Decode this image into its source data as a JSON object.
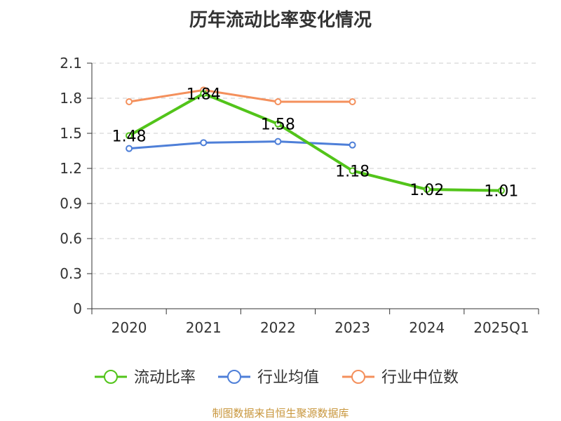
{
  "chart_data": {
    "type": "line",
    "title": "历年流动比率变化情况",
    "categories": [
      "2020",
      "2021",
      "2022",
      "2023",
      "2024",
      "2025Q1"
    ],
    "ylim": [
      0,
      2.1
    ],
    "yticks": [
      "0",
      "0.3",
      "0.6",
      "0.9",
      "1.2",
      "1.5",
      "1.8",
      "2.1"
    ],
    "grid": true,
    "legend_position": "bottom",
    "series": [
      {
        "name": "流动比率",
        "color": "#52c41a",
        "values": [
          1.48,
          1.84,
          1.58,
          1.18,
          1.02,
          1.01
        ],
        "labels": [
          "1.48",
          "1.84",
          "1.58",
          "1.18",
          "1.02",
          "1.01"
        ]
      },
      {
        "name": "行业均值",
        "color": "#4e7fd8",
        "values": [
          1.37,
          1.42,
          1.43,
          1.4,
          null,
          null
        ]
      },
      {
        "name": "行业中位数",
        "color": "#f4905c",
        "values": [
          1.77,
          1.87,
          1.77,
          1.77,
          null,
          null
        ]
      }
    ]
  },
  "source": "制图数据来自恒生聚源数据库"
}
